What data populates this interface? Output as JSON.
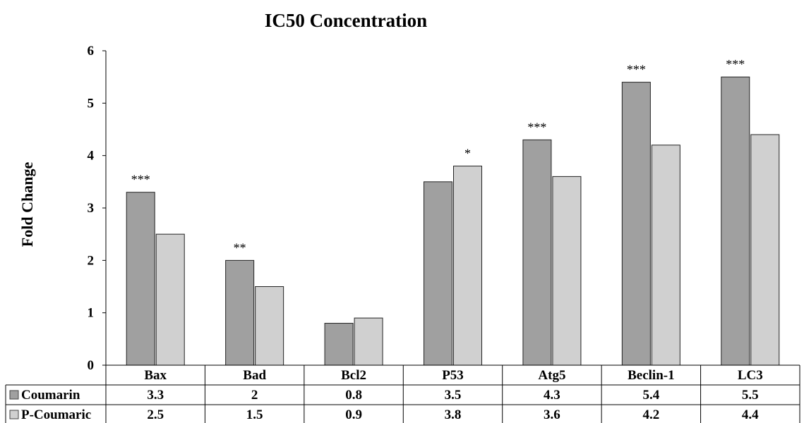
{
  "chart_data": {
    "type": "bar",
    "title": "IC50 Concentration",
    "xlabel": "",
    "ylabel": "Fold Change",
    "ylim": [
      0,
      6
    ],
    "yticks": [
      0,
      1,
      2,
      3,
      4,
      5,
      6
    ],
    "grid": false,
    "legend": "data-table-left",
    "categories": [
      "Bax",
      "Bad",
      "Bcl2",
      "P53",
      "Atg5",
      "Beclin-1",
      "LC3"
    ],
    "series": [
      {
        "name": "Coumarin",
        "color": "#a0a0a0",
        "values": [
          3.3,
          2,
          0.8,
          3.5,
          4.3,
          5.4,
          5.5
        ],
        "labels": [
          "3.3",
          "2",
          "0.8",
          "3.5",
          "4.3",
          "5.4",
          "5.5"
        ]
      },
      {
        "name": "P-Coumaric",
        "color": "#d0d0d0",
        "values": [
          2.5,
          1.5,
          0.9,
          3.8,
          3.6,
          4.2,
          4.4
        ],
        "labels": [
          "2.5",
          "1.5",
          "0.9",
          "3.8",
          "3.6",
          "4.2",
          "4.4"
        ]
      }
    ],
    "annotations": [
      {
        "category": "Bax",
        "series": "Coumarin",
        "text": "***"
      },
      {
        "category": "Bad",
        "series": "Coumarin",
        "text": "**"
      },
      {
        "category": "P53",
        "series": "P-Coumaric",
        "text": "*"
      },
      {
        "category": "Atg5",
        "series": "Coumarin",
        "text": "***"
      },
      {
        "category": "Beclin-1",
        "series": "Coumarin",
        "text": "***"
      },
      {
        "category": "LC3",
        "series": "Coumarin",
        "text": "***"
      }
    ]
  }
}
